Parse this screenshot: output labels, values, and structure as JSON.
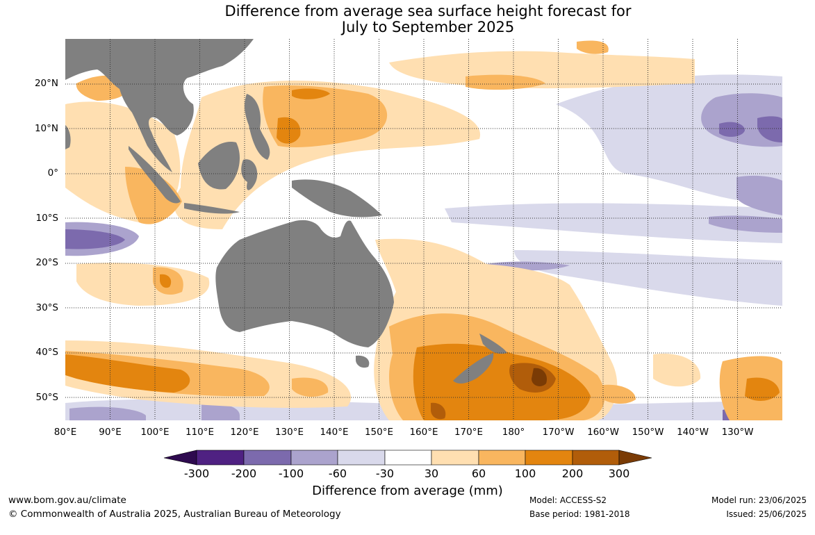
{
  "title": {
    "line1": "Difference from average sea surface height forecast for",
    "line2": "July to September 2025"
  },
  "map": {
    "lat_labels": [
      "20°N",
      "10°N",
      "0°",
      "10°S",
      "20°S",
      "30°S",
      "40°S",
      "50°S"
    ],
    "lon_labels": [
      "80°E",
      "90°E",
      "100°E",
      "110°E",
      "120°E",
      "130°E",
      "140°E",
      "150°E",
      "160°E",
      "170°E",
      "180°",
      "170°W",
      "160°W",
      "150°W",
      "140°W",
      "130°W"
    ],
    "colors": {
      "land": "#808080",
      "grid": "#333333"
    }
  },
  "colorbar": {
    "labels": [
      "-300",
      "-200",
      "-100",
      "-60",
      "-30",
      "30",
      "60",
      "100",
      "200",
      "300"
    ],
    "colors": [
      "#2e0a4f",
      "#4f2182",
      "#7c6aad",
      "#aba3cd",
      "#d9d9eb",
      "#ffffff",
      "#ffdfb1",
      "#f9b65f",
      "#e3850f",
      "#b15d0a",
      "#7a3b05"
    ],
    "title": "Difference from average (mm)"
  },
  "footer": {
    "website": "www.bom.gov.au/climate",
    "copyright": "© Commonwealth of Australia 2025, Australian Bureau of Meteorology",
    "model": "Model: ACCESS-S2",
    "base_period": "Base period: 1981-2018",
    "model_run": "Model run: 23/06/2025",
    "issued": "Issued: 25/06/2025"
  }
}
